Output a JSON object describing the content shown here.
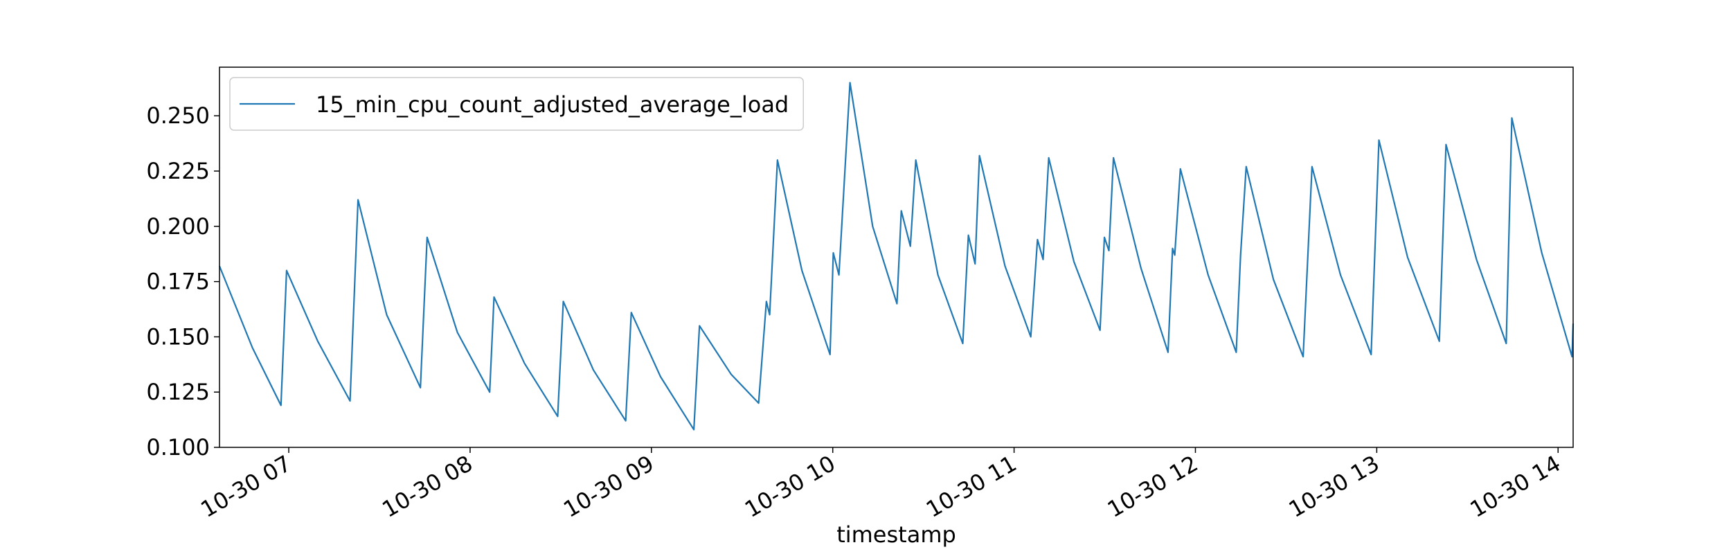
{
  "chart_data": {
    "type": "line",
    "x_label": "timestamp",
    "x": [
      6.618,
      6.8,
      6.957,
      6.988,
      7.16,
      7.338,
      7.382,
      7.54,
      7.726,
      7.763,
      7.93,
      8.108,
      8.132,
      8.3,
      8.483,
      8.514,
      8.68,
      8.858,
      8.889,
      9.05,
      9.234,
      9.265,
      9.44,
      9.591,
      9.634,
      9.652,
      9.695,
      9.83,
      9.985,
      10.003,
      10.034,
      10.095,
      10.22,
      10.354,
      10.378,
      10.428,
      10.458,
      10.58,
      10.717,
      10.748,
      10.785,
      10.809,
      10.95,
      11.092,
      11.129,
      11.16,
      11.191,
      11.33,
      11.474,
      11.498,
      11.523,
      11.548,
      11.7,
      11.849,
      11.874,
      11.886,
      11.917,
      12.07,
      12.225,
      12.249,
      12.28,
      12.43,
      12.594,
      12.643,
      12.8,
      12.969,
      13.012,
      13.17,
      13.345,
      13.382,
      13.55,
      13.714,
      13.745,
      13.91,
      14.077,
      14.083
    ],
    "series": [
      {
        "name": "15_min_cpu_count_adjusted_average_load",
        "color": "#1f77b4",
        "values": [
          0.182,
          0.145,
          0.119,
          0.18,
          0.148,
          0.121,
          0.212,
          0.16,
          0.127,
          0.195,
          0.152,
          0.125,
          0.168,
          0.138,
          0.114,
          0.166,
          0.135,
          0.112,
          0.161,
          0.132,
          0.108,
          0.155,
          0.133,
          0.12,
          0.166,
          0.16,
          0.23,
          0.18,
          0.142,
          0.188,
          0.178,
          0.265,
          0.2,
          0.165,
          0.207,
          0.191,
          0.23,
          0.178,
          0.147,
          0.196,
          0.183,
          0.232,
          0.182,
          0.15,
          0.194,
          0.185,
          0.231,
          0.184,
          0.153,
          0.195,
          0.189,
          0.231,
          0.181,
          0.143,
          0.19,
          0.187,
          0.226,
          0.178,
          0.143,
          0.187,
          0.227,
          0.176,
          0.141,
          0.227,
          0.178,
          0.142,
          0.239,
          0.186,
          0.148,
          0.237,
          0.185,
          0.147,
          0.249,
          0.188,
          0.141,
          0.156
        ]
      }
    ],
    "xlim": [
      6.618,
      14.083
    ],
    "xticks": [
      {
        "value": 7,
        "label": "10-30 07"
      },
      {
        "value": 8,
        "label": "10-30 08"
      },
      {
        "value": 9,
        "label": "10-30 09"
      },
      {
        "value": 10,
        "label": "10-30 10"
      },
      {
        "value": 11,
        "label": "10-30 11"
      },
      {
        "value": 12,
        "label": "10-30 12"
      },
      {
        "value": 13,
        "label": "10-30 13"
      },
      {
        "value": 14,
        "label": "10-30 14"
      }
    ],
    "ylim": [
      0.1,
      0.272
    ],
    "yticks": [
      {
        "value": 0.1,
        "label": "0.100"
      },
      {
        "value": 0.125,
        "label": "0.125"
      },
      {
        "value": 0.15,
        "label": "0.150"
      },
      {
        "value": 0.175,
        "label": "0.175"
      },
      {
        "value": 0.2,
        "label": "0.200"
      },
      {
        "value": 0.225,
        "label": "0.225"
      },
      {
        "value": 0.25,
        "label": "0.250"
      }
    ],
    "grid": false,
    "legend": "upper-left"
  }
}
